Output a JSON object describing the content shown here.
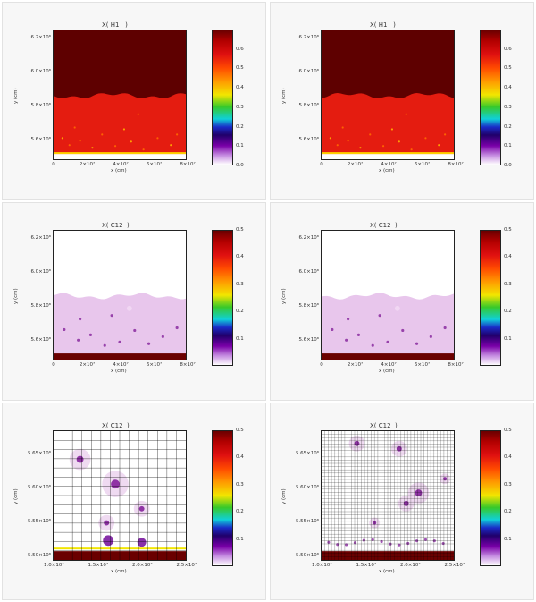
{
  "panels": [
    {
      "id": "p1",
      "title": "X( H1   )",
      "xlabel": "x (cm)",
      "ylabel": "y (cm)",
      "xticks": [
        "0",
        "2×10⁷",
        "4×10⁷",
        "6×10⁷",
        "8×10⁷"
      ],
      "yticks": [
        "6.2×10⁸",
        "6.0×10⁸",
        "5.8×10⁸",
        "5.6×10⁸"
      ],
      "cbticks": [
        "0.6",
        "0.5",
        "0.4",
        "0.3",
        "0.2",
        "0.1",
        "0.0"
      ],
      "cbmax": 0.7,
      "colormap": "rainbow-white",
      "fill": "h1",
      "grid": "none"
    },
    {
      "id": "p2",
      "title": "X( H1   )",
      "xlabel": "x (cm)",
      "ylabel": "y (cm)",
      "xticks": [
        "0",
        "2×10⁷",
        "4×10⁷",
        "6×10⁷",
        "8×10⁷"
      ],
      "yticks": [
        "6.2×10⁸",
        "6.0×10⁸",
        "5.8×10⁸",
        "5.6×10⁸"
      ],
      "cbticks": [
        "0.6",
        "0.5",
        "0.4",
        "0.3",
        "0.2",
        "0.1",
        "0.0"
      ],
      "cbmax": 0.7,
      "colormap": "rainbow-white",
      "fill": "h1",
      "grid": "none"
    },
    {
      "id": "p3",
      "title": "X( C12  )",
      "xlabel": "x (cm)",
      "ylabel": "y (cm)",
      "xticks": [
        "0",
        "2×10⁷",
        "4×10⁷",
        "6×10⁷",
        "8×10⁷"
      ],
      "yticks": [
        "6.2×10⁸",
        "6.0×10⁸",
        "5.8×10⁸",
        "5.6×10⁸"
      ],
      "cbticks": [
        "0.5",
        "0.4",
        "0.3",
        "0.2",
        "0.1"
      ],
      "cbmax": 0.5,
      "colormap": "rainbow-white",
      "fill": "c12",
      "grid": "none"
    },
    {
      "id": "p4",
      "title": "X( C12  )",
      "xlabel": "x (cm)",
      "ylabel": "y (cm)",
      "xticks": [
        "0",
        "2×10⁷",
        "4×10⁷",
        "6×10⁷",
        "8×10⁷"
      ],
      "yticks": [
        "6.2×10⁸",
        "6.0×10⁸",
        "5.8×10⁸",
        "5.6×10⁸"
      ],
      "cbticks": [
        "0.5",
        "0.4",
        "0.3",
        "0.2",
        "0.1"
      ],
      "cbmax": 0.5,
      "colormap": "rainbow-white",
      "fill": "c12",
      "grid": "none"
    },
    {
      "id": "p5",
      "title": "X( C12  )",
      "xlabel": "x (cm)",
      "ylabel": "y (cm)",
      "xticks": [
        "1.0×10⁷",
        "1.5×10⁷",
        "2.0×10⁷",
        "2.5×10⁷"
      ],
      "yticks": [
        "5.65×10⁸",
        "5.60×10⁸",
        "5.55×10⁸",
        "5.50×10⁸"
      ],
      "cbticks": [
        "0.5",
        "0.4",
        "0.3",
        "0.2",
        "0.1"
      ],
      "cbmax": 0.5,
      "colormap": "rainbow-white",
      "fill": "zoom",
      "grid": "coarse"
    },
    {
      "id": "p6",
      "title": "X( C12  )",
      "xlabel": "x (cm)",
      "ylabel": "y (cm)",
      "xticks": [
        "1.0×10⁷",
        "1.5×10⁷",
        "2.0×10⁷",
        "2.5×10⁷"
      ],
      "yticks": [
        "5.65×10⁸",
        "5.60×10⁸",
        "5.55×10⁸",
        "5.50×10⁸"
      ],
      "cbticks": [
        "0.5",
        "0.4",
        "0.3",
        "0.2",
        "0.1"
      ],
      "cbmax": 0.5,
      "colormap": "rainbow-white",
      "fill": "zoom",
      "grid": "fine"
    }
  ]
}
